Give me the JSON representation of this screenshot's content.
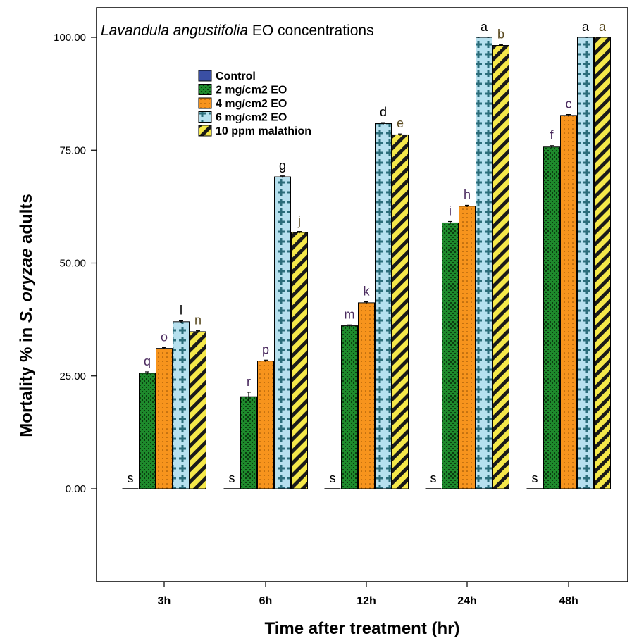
{
  "chart_data": {
    "type": "bar",
    "title": {
      "italic": "Lavandula angustifolia",
      "rest": " EO concentrations"
    },
    "xlabel": "Time after treatment (hr)",
    "ylabel": {
      "pre": "Mortality % in ",
      "italic": "S. oryzae",
      "post": " adults"
    },
    "categories": [
      "3h",
      "6h",
      "12h",
      "24h",
      "48h"
    ],
    "ylim": [
      -20,
      110
    ],
    "yticks": [
      "0.00",
      "25.00",
      "50.00",
      "75.00",
      "100.00"
    ],
    "ytick_values": [
      0,
      25,
      50,
      75,
      100
    ],
    "legend_position": "top-left, inside plot",
    "series": [
      {
        "name": "Control",
        "values": [
          0,
          0,
          0,
          0,
          0
        ],
        "letters": [
          "s",
          "s",
          "s",
          "s",
          "s"
        ],
        "color": "#3a4fa3",
        "pattern": "solid"
      },
      {
        "name": "2 mg/cm2 EO",
        "values": [
          25.6,
          20.4,
          36.1,
          58.9,
          75.7
        ],
        "errors": [
          0.3,
          1.0,
          0.2,
          0.3,
          0.3
        ],
        "letters": [
          "q",
          "r",
          "m",
          "i",
          "f"
        ],
        "color": "#1e8a2c",
        "pattern": "grid"
      },
      {
        "name": "4 mg/cm2 EO",
        "values": [
          31.1,
          28.3,
          41.2,
          62.6,
          82.7
        ],
        "errors": [
          0.2,
          0.2,
          0.2,
          0.2,
          0.2
        ],
        "letters": [
          "o",
          "p",
          "k",
          "h",
          "c"
        ],
        "color": "#f7941d",
        "pattern": "dots"
      },
      {
        "name": "6 mg/cm2 EO",
        "values": [
          37.0,
          69.1,
          80.9,
          100,
          100
        ],
        "errors": [
          0.2,
          0.2,
          0.2,
          0,
          0
        ],
        "letters": [
          "l",
          "g",
          "d",
          "a",
          "a"
        ],
        "color": "#b6e0ee",
        "pattern": "plus"
      },
      {
        "name": "10 ppm malathion",
        "values": [
          34.8,
          56.8,
          78.4,
          98.2,
          100
        ],
        "errors": [
          0.2,
          0.2,
          0.2,
          0.2,
          0
        ],
        "letters": [
          "n",
          "j",
          "e",
          "b",
          "a"
        ],
        "color": "#f5e84a",
        "pattern": "diagonal"
      }
    ],
    "letter_colors": {
      "Control": "#000000",
      "2 mg/cm2 EO": "#4a2a5e",
      "4 mg/cm2 EO": "#4a2a5e",
      "6 mg/cm2 EO": "#000000",
      "10 ppm malathion": "#5a4a20"
    }
  }
}
